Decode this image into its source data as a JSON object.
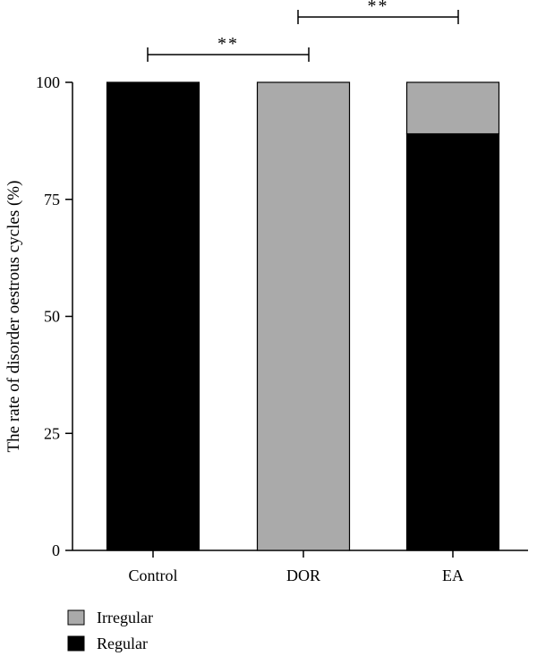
{
  "chart_data": {
    "type": "bar",
    "stacked": true,
    "ylabel": "The rate of disorder oestrous cycles (%)",
    "xlabel": "",
    "ylim": [
      0,
      100
    ],
    "yticks": [
      0,
      25,
      50,
      75,
      100
    ],
    "ytick_labels": [
      "0",
      "25",
      "50",
      "75",
      "100"
    ],
    "categories": [
      "Control",
      "DOR",
      "EA"
    ],
    "series": [
      {
        "name": "Regular",
        "color": "#000000",
        "values": [
          100,
          0,
          89
        ]
      },
      {
        "name": "Irregular",
        "color": "#aaaaaa",
        "values": [
          0,
          100,
          11
        ]
      }
    ],
    "legend": {
      "placement": "bottom-left",
      "items": [
        {
          "label": "Irregular",
          "color": "#aaaaaa"
        },
        {
          "label": "Regular",
          "color": "#000000"
        }
      ]
    },
    "annotations": [
      {
        "from": "Control",
        "to": "DOR",
        "text": "**"
      },
      {
        "from": "DOR",
        "to": "EA",
        "text": "**"
      }
    ]
  }
}
